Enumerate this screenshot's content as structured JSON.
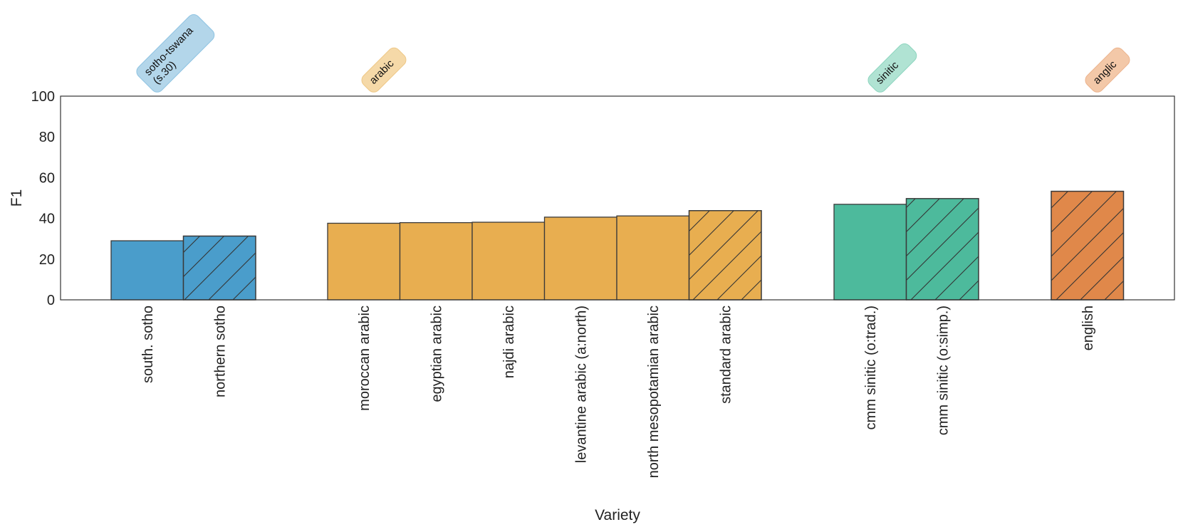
{
  "chart_data": {
    "type": "bar",
    "title": "",
    "xlabel": "Variety",
    "ylabel": "F1",
    "ylim": [
      0,
      100
    ],
    "yticks": [
      0,
      20,
      40,
      60,
      80,
      100
    ],
    "grid": false,
    "legend": "none",
    "hatch_meaning_note": "hatched bars mark the last variety of each group",
    "groups": [
      {
        "label_lines": [
          "sotho-tswana",
          "(s.30)"
        ],
        "color": "#4a9dcb",
        "badge_fill": "#b3d6ea",
        "badge_stroke": "#8ec3e2",
        "bars": [
          {
            "label": "south. sotho",
            "value": 29,
            "hatched": false
          },
          {
            "label": "northern sotho",
            "value": 31.3,
            "hatched": true
          }
        ]
      },
      {
        "label_lines": [
          "arabic"
        ],
        "color": "#e8ae50",
        "badge_fill": "#f5d9a8",
        "badge_stroke": "#eec785",
        "bars": [
          {
            "label": "moroccan arabic",
            "value": 37.6,
            "hatched": false
          },
          {
            "label": "egyptian arabic",
            "value": 37.9,
            "hatched": false
          },
          {
            "label": "najdi arabic",
            "value": 38.1,
            "hatched": false
          },
          {
            "label": "levantine arabic (a:north)",
            "value": 40.6,
            "hatched": false
          },
          {
            "label": "north mesopotamian arabic",
            "value": 41.2,
            "hatched": false
          },
          {
            "label": "standard arabic",
            "value": 43.8,
            "hatched": true
          }
        ]
      },
      {
        "label_lines": [
          "sinitic"
        ],
        "color": "#4dba9c",
        "badge_fill": "#b0e3d3",
        "badge_stroke": "#8dd5bf",
        "bars": [
          {
            "label": "cmm sinitic (o:trad.)",
            "value": 46.9,
            "hatched": false
          },
          {
            "label": "cmm sinitic (o:simp.)",
            "value": 49.7,
            "hatched": true
          }
        ]
      },
      {
        "label_lines": [
          "anglic"
        ],
        "color": "#e0884a",
        "badge_fill": "#f3c8a8",
        "badge_stroke": "#ecb28b",
        "bars": [
          {
            "label": "english",
            "value": 53.3,
            "hatched": true
          }
        ]
      }
    ]
  }
}
